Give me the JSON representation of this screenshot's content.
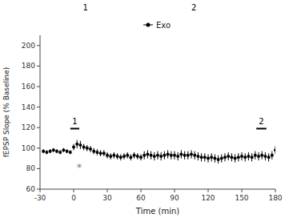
{
  "chart_data": {
    "type": "scatter",
    "xlabel": "Time (min)",
    "ylabel": "fEPSP Slope (% Baseline)",
    "x": [
      -27,
      -24,
      -21,
      -18,
      -15,
      -12,
      -9,
      -6,
      -3,
      0,
      3,
      6,
      9,
      12,
      15,
      18,
      21,
      24,
      27,
      30,
      33,
      36,
      39,
      42,
      45,
      48,
      51,
      54,
      57,
      60,
      63,
      66,
      69,
      72,
      75,
      78,
      81,
      84,
      87,
      90,
      93,
      96,
      99,
      102,
      105,
      108,
      111,
      114,
      117,
      120,
      123,
      126,
      129,
      132,
      135,
      138,
      141,
      144,
      147,
      150,
      153,
      156,
      159,
      162,
      165,
      168,
      171,
      174,
      177,
      180
    ],
    "series": [
      {
        "name": "Exo",
        "color": "black",
        "marker": "circle",
        "values": [
          97,
          96,
          97,
          98,
          97,
          96,
          98,
          97,
          96,
          101,
          104,
          103,
          101,
          100,
          99,
          97,
          96,
          95,
          95,
          93,
          92,
          93,
          92,
          91,
          92,
          93,
          91,
          93,
          92,
          91,
          93,
          94,
          93,
          92,
          93,
          92,
          93,
          94,
          93,
          93,
          92,
          94,
          93,
          93,
          94,
          93,
          92,
          91,
          91,
          90,
          91,
          90,
          89,
          90,
          91,
          92,
          91,
          90,
          91,
          92,
          91,
          92,
          91,
          93,
          92,
          93,
          92,
          91,
          93,
          98
        ],
        "errors": [
          2,
          2,
          2,
          2,
          2,
          2,
          2,
          2,
          2,
          3,
          4,
          4,
          3,
          3,
          3,
          3,
          3,
          3,
          3,
          3,
          3,
          3,
          3,
          3,
          3,
          3,
          3,
          3,
          3,
          3,
          4,
          4,
          4,
          4,
          4,
          4,
          4,
          4,
          4,
          4,
          4,
          4,
          4,
          4,
          4,
          4,
          4,
          4,
          4,
          4,
          4,
          4,
          4,
          4,
          4,
          4,
          4,
          4,
          4,
          4,
          4,
          4,
          4,
          4,
          4,
          4,
          4,
          4,
          4,
          4
        ]
      }
    ],
    "xlim": [
      -30,
      180
    ],
    "ylim": [
      60,
      210
    ],
    "xticks": [
      -30,
      0,
      30,
      60,
      90,
      120,
      150,
      180
    ],
    "yticks": [
      60,
      80,
      100,
      120,
      140,
      160,
      180,
      200
    ],
    "legend": "upper center",
    "annotations": [
      {
        "text": "*",
        "x": 5,
        "y": 82,
        "color": "gray"
      },
      {
        "text": "1",
        "x": -3,
        "x_end": 5,
        "y": 119
      },
      {
        "text": "2",
        "x": 163,
        "x_end": 172,
        "y": 119
      }
    ],
    "panel_labels": [
      "1",
      "2"
    ]
  }
}
